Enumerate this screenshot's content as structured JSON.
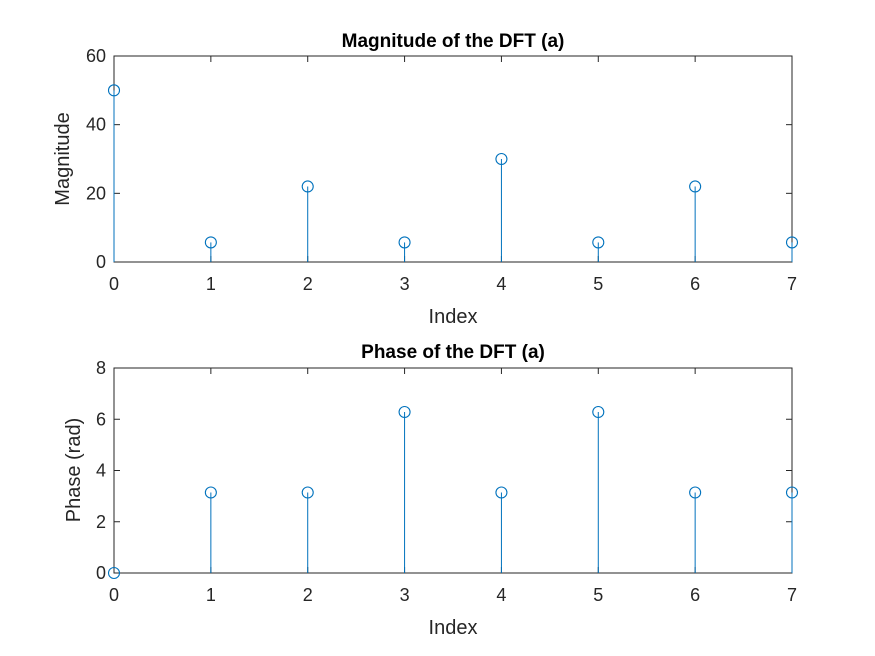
{
  "chart_data": [
    {
      "type": "stem",
      "title": "Magnitude of the DFT (a)",
      "xlabel": "Index",
      "ylabel": "Magnitude",
      "x": [
        0,
        1,
        2,
        3,
        4,
        5,
        6,
        7
      ],
      "values": [
        50,
        5.7,
        22,
        5.7,
        30,
        5.7,
        22,
        5.7
      ],
      "xlim": [
        0,
        7
      ],
      "ylim": [
        0,
        60
      ],
      "xticks": [
        "0",
        "1",
        "2",
        "3",
        "4",
        "5",
        "6",
        "7"
      ],
      "yticks": [
        "0",
        "20",
        "40",
        "60"
      ],
      "color": "#0072BD",
      "grid": false
    },
    {
      "type": "stem",
      "title": "Phase of the DFT (a)",
      "xlabel": "Index",
      "ylabel": "Phase (rad)",
      "x": [
        0,
        1,
        2,
        3,
        4,
        5,
        6,
        7
      ],
      "values": [
        0,
        3.1416,
        3.1416,
        6.2832,
        3.1416,
        6.2832,
        3.1416,
        3.1416
      ],
      "xlim": [
        0,
        7
      ],
      "ylim": [
        0,
        8
      ],
      "xticks": [
        "0",
        "1",
        "2",
        "3",
        "4",
        "5",
        "6",
        "7"
      ],
      "yticks": [
        "0",
        "2",
        "4",
        "6",
        "8"
      ],
      "color": "#0072BD",
      "grid": false
    }
  ]
}
